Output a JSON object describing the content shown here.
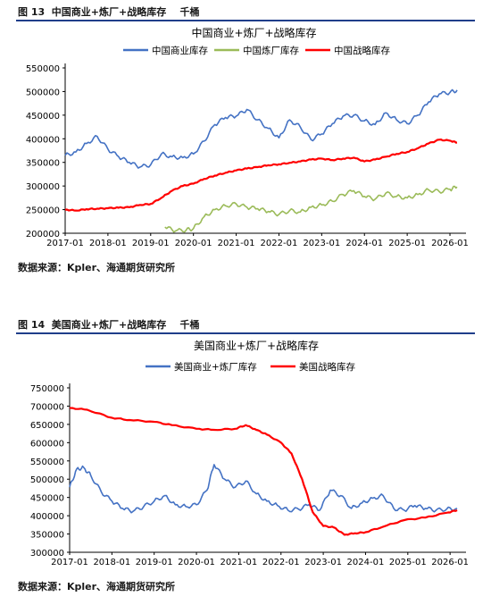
{
  "figures": [
    {
      "caption": "图 13  中国商业+炼厂+战略库存    千桶",
      "source": "数据来源：Kpler、海通期货研究所"
    },
    {
      "caption": "图 14  美国商业+炼厂+战略库存    千桶",
      "source": "数据来源：Kpler、海通期货研究所"
    }
  ],
  "chart_data": [
    {
      "type": "line",
      "title": "中国商业+炼厂+战略库存",
      "xlabel": "",
      "ylabel": "",
      "x_ticks": [
        "2017-01",
        "2018-01",
        "2019-01",
        "2020-01",
        "2021-01",
        "2022-01",
        "2023-01",
        "2024-01",
        "2025-01",
        "2026-01"
      ],
      "y_ticks": [
        "200000",
        "250000",
        "300000",
        "350000",
        "400000",
        "450000",
        "500000",
        "550000"
      ],
      "ylim": [
        200000,
        550000
      ],
      "xlim": [
        "2017-01",
        "2026-04"
      ],
      "grid": false,
      "legend_position": "top",
      "series": [
        {
          "name": "中国商业库存",
          "color": "#4472c4",
          "points": [
            [
              "2017-01",
              365000
            ],
            [
              "2017-04",
              372000
            ],
            [
              "2017-07",
              390000
            ],
            [
              "2017-10",
              405000
            ],
            [
              "2018-01",
              378000
            ],
            [
              "2018-04",
              362000
            ],
            [
              "2018-07",
              350000
            ],
            [
              "2018-10",
              340000
            ],
            [
              "2019-01",
              345000
            ],
            [
              "2019-04",
              368000
            ],
            [
              "2019-07",
              362000
            ],
            [
              "2019-10",
              360000
            ],
            [
              "2020-01",
              368000
            ],
            [
              "2020-04",
              395000
            ],
            [
              "2020-07",
              430000
            ],
            [
              "2020-10",
              445000
            ],
            [
              "2021-01",
              448000
            ],
            [
              "2021-04",
              462000
            ],
            [
              "2021-07",
              440000
            ],
            [
              "2021-10",
              422000
            ],
            [
              "2022-01",
              402000
            ],
            [
              "2022-04",
              440000
            ],
            [
              "2022-07",
              425000
            ],
            [
              "2022-10",
              398000
            ],
            [
              "2023-01",
              410000
            ],
            [
              "2023-04",
              432000
            ],
            [
              "2023-07",
              448000
            ],
            [
              "2023-10",
              450000
            ],
            [
              "2024-01",
              438000
            ],
            [
              "2024-04",
              430000
            ],
            [
              "2024-07",
              455000
            ],
            [
              "2024-10",
              440000
            ],
            [
              "2025-01",
              432000
            ],
            [
              "2025-04",
              450000
            ],
            [
              "2025-07",
              478000
            ],
            [
              "2025-10",
              495000
            ],
            [
              "2026-01",
              498000
            ],
            [
              "2026-03",
              503000
            ]
          ]
        },
        {
          "name": "中国炼厂库存",
          "color": "#9bbb59",
          "points": [
            [
              "2019-05",
              213000
            ],
            [
              "2019-08",
              205000
            ],
            [
              "2019-11",
              207000
            ],
            [
              "2020-01",
              210000
            ],
            [
              "2020-04",
              235000
            ],
            [
              "2020-07",
              250000
            ],
            [
              "2020-10",
              258000
            ],
            [
              "2021-01",
              262000
            ],
            [
              "2021-04",
              255000
            ],
            [
              "2021-07",
              252000
            ],
            [
              "2021-10",
              246000
            ],
            [
              "2022-01",
              240000
            ],
            [
              "2022-04",
              248000
            ],
            [
              "2022-07",
              245000
            ],
            [
              "2022-10",
              255000
            ],
            [
              "2023-01",
              260000
            ],
            [
              "2023-04",
              268000
            ],
            [
              "2023-07",
              282000
            ],
            [
              "2023-10",
              290000
            ],
            [
              "2024-01",
              278000
            ],
            [
              "2024-04",
              272000
            ],
            [
              "2024-07",
              285000
            ],
            [
              "2024-10",
              278000
            ],
            [
              "2025-01",
              275000
            ],
            [
              "2025-04",
              282000
            ],
            [
              "2025-07",
              292000
            ],
            [
              "2025-10",
              288000
            ],
            [
              "2026-01",
              293000
            ],
            [
              "2026-03",
              298000
            ]
          ]
        },
        {
          "name": "中国战略库存",
          "color": "#ff0000",
          "points": [
            [
              "2017-01",
              250000
            ],
            [
              "2017-04",
              248000
            ],
            [
              "2017-07",
              251000
            ],
            [
              "2017-10",
              252000
            ],
            [
              "2018-01",
              253000
            ],
            [
              "2018-04",
              254000
            ],
            [
              "2018-07",
              255000
            ],
            [
              "2018-10",
              260000
            ],
            [
              "2019-01",
              262000
            ],
            [
              "2019-04",
              275000
            ],
            [
              "2019-07",
              290000
            ],
            [
              "2019-10",
              300000
            ],
            [
              "2020-01",
              305000
            ],
            [
              "2020-04",
              315000
            ],
            [
              "2020-07",
              322000
            ],
            [
              "2020-10",
              328000
            ],
            [
              "2021-01",
              333000
            ],
            [
              "2021-04",
              337000
            ],
            [
              "2021-07",
              340000
            ],
            [
              "2021-10",
              344000
            ],
            [
              "2022-01",
              346000
            ],
            [
              "2022-04",
              349000
            ],
            [
              "2022-07",
              352000
            ],
            [
              "2022-10",
              356000
            ],
            [
              "2023-01",
              358000
            ],
            [
              "2023-04",
              355000
            ],
            [
              "2023-07",
              358000
            ],
            [
              "2023-10",
              360000
            ],
            [
              "2024-01",
              352000
            ],
            [
              "2024-04",
              356000
            ],
            [
              "2024-07",
              362000
            ],
            [
              "2024-10",
              368000
            ],
            [
              "2025-01",
              372000
            ],
            [
              "2025-04",
              380000
            ],
            [
              "2025-07",
              390000
            ],
            [
              "2025-10",
              398000
            ],
            [
              "2026-01",
              396000
            ],
            [
              "2026-03",
              392000
            ]
          ]
        }
      ]
    },
    {
      "type": "line",
      "title": "美国商业+炼厂+战略库存",
      "xlabel": "",
      "ylabel": "",
      "x_ticks": [
        "2017-01",
        "2018-01",
        "2019-01",
        "2020-01",
        "2021-01",
        "2022-01",
        "2023-01",
        "2024-01",
        "2025-01",
        "2026-01"
      ],
      "y_ticks": [
        "300000",
        "350000",
        "400000",
        "450000",
        "500000",
        "550000",
        "600000",
        "650000",
        "700000",
        "750000"
      ],
      "ylim": [
        300000,
        750000
      ],
      "xlim": [
        "2017-01",
        "2026-04"
      ],
      "grid": false,
      "legend_position": "top",
      "series": [
        {
          "name": "美国商业+炼厂库存",
          "color": "#4472c4",
          "points": [
            [
              "2017-01",
              478000
            ],
            [
              "2017-03",
              528000
            ],
            [
              "2017-05",
              532000
            ],
            [
              "2017-07",
              510000
            ],
            [
              "2017-10",
              465000
            ],
            [
              "2018-01",
              440000
            ],
            [
              "2018-04",
              420000
            ],
            [
              "2018-07",
              412000
            ],
            [
              "2018-10",
              425000
            ],
            [
              "2019-01",
              440000
            ],
            [
              "2019-04",
              455000
            ],
            [
              "2019-07",
              430000
            ],
            [
              "2019-10",
              425000
            ],
            [
              "2020-01",
              430000
            ],
            [
              "2020-04",
              470000
            ],
            [
              "2020-06",
              540000
            ],
            [
              "2020-09",
              500000
            ],
            [
              "2020-12",
              478000
            ],
            [
              "2021-03",
              495000
            ],
            [
              "2021-06",
              460000
            ],
            [
              "2021-09",
              440000
            ],
            [
              "2021-12",
              428000
            ],
            [
              "2022-03",
              415000
            ],
            [
              "2022-06",
              418000
            ],
            [
              "2022-09",
              430000
            ],
            [
              "2022-12",
              415000
            ],
            [
              "2023-03",
              470000
            ],
            [
              "2023-06",
              455000
            ],
            [
              "2023-09",
              420000
            ],
            [
              "2023-12",
              435000
            ],
            [
              "2024-03",
              448000
            ],
            [
              "2024-06",
              455000
            ],
            [
              "2024-09",
              420000
            ],
            [
              "2024-12",
              415000
            ],
            [
              "2025-03",
              428000
            ],
            [
              "2025-06",
              420000
            ],
            [
              "2025-09",
              415000
            ],
            [
              "2025-12",
              418000
            ],
            [
              "2026-03",
              420000
            ]
          ]
        },
        {
          "name": "美国战略库存",
          "color": "#ff0000",
          "points": [
            [
              "2017-01",
              695000
            ],
            [
              "2017-06",
              690000
            ],
            [
              "2018-01",
              668000
            ],
            [
              "2018-06",
              662000
            ],
            [
              "2019-01",
              657000
            ],
            [
              "2019-06",
              648000
            ],
            [
              "2020-01",
              638000
            ],
            [
              "2020-06",
              635000
            ],
            [
              "2020-12",
              638000
            ],
            [
              "2021-03",
              648000
            ],
            [
              "2021-06",
              635000
            ],
            [
              "2021-09",
              622000
            ],
            [
              "2022-01",
              600000
            ],
            [
              "2022-04",
              570000
            ],
            [
              "2022-07",
              500000
            ],
            [
              "2022-10",
              410000
            ],
            [
              "2023-01",
              372000
            ],
            [
              "2023-04",
              368000
            ],
            [
              "2023-07",
              348000
            ],
            [
              "2023-10",
              352000
            ],
            [
              "2024-01",
              355000
            ],
            [
              "2024-06",
              370000
            ],
            [
              "2024-12",
              388000
            ],
            [
              "2025-06",
              395000
            ],
            [
              "2025-12",
              408000
            ],
            [
              "2026-03",
              415000
            ]
          ]
        }
      ]
    }
  ]
}
